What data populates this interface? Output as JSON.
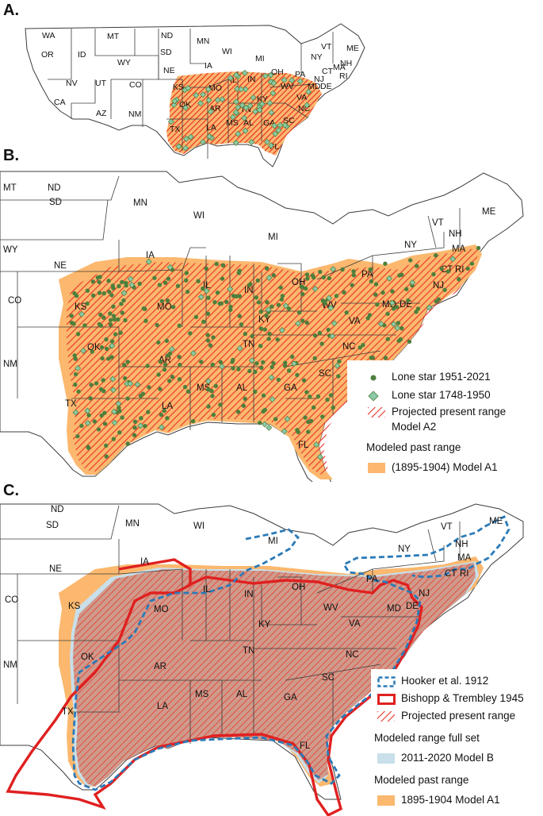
{
  "panels": {
    "a": {
      "label": "A."
    },
    "b": {
      "label": "B."
    },
    "c": {
      "label": "C."
    }
  },
  "states": {
    "a": [
      "WA",
      "MT",
      "ND",
      "MN",
      "OR",
      "ID",
      "SD",
      "WI",
      "MI",
      "VT",
      "ME",
      "NY",
      "NH",
      "WY",
      "NE",
      "IA",
      "PA",
      "RI",
      "CT",
      "MA",
      "NJ",
      "DE",
      "MD",
      "NV",
      "UT",
      "CO",
      "KS",
      "MO",
      "IL",
      "IN",
      "OH",
      "WV",
      "VA",
      "KY",
      "CA",
      "AZ",
      "NM",
      "OK",
      "AR",
      "TN",
      "NC",
      "SC",
      "TX",
      "LA",
      "MS",
      "AL",
      "GA",
      "FL"
    ],
    "b": [
      "MT",
      "ND",
      "MN",
      "WI",
      "MI",
      "VT",
      "ME",
      "NH",
      "NY",
      "MA",
      "SD",
      "WY",
      "NE",
      "IA",
      "PA",
      "CT",
      "RI",
      "NJ",
      "CO",
      "KS",
      "MO",
      "IL",
      "IN",
      "OH",
      "WV",
      "MD",
      "DE",
      "VA",
      "KY",
      "OK",
      "AR",
      "TN",
      "NC",
      "SC",
      "NM",
      "MS",
      "AL",
      "GA",
      "TX",
      "LA",
      "FL"
    ],
    "c": [
      "ND",
      "SD",
      "MN",
      "WI",
      "MI",
      "VT",
      "ME",
      "NH",
      "NY",
      "MA",
      "NE",
      "IA",
      "PA",
      "CT",
      "RI",
      "NJ",
      "CO",
      "KS",
      "MO",
      "IL",
      "IN",
      "OH",
      "WV",
      "MD",
      "DE",
      "VA",
      "KY",
      "OK",
      "AR",
      "TN",
      "NC",
      "NM",
      "SC",
      "TX",
      "LA",
      "MS",
      "AL",
      "GA",
      "FL"
    ]
  },
  "legend_b": {
    "lone_star_recent": "Lone star 1951-2021",
    "lone_star_historic": "Lone star 1748-1950",
    "projected_line1": "Projected present range",
    "projected_line2": "Model A2",
    "past_header": "Modeled past range",
    "past_label": "(1895-1904) Model A1"
  },
  "legend_c": {
    "hooker": "Hooker et al. 1912",
    "bishopp": "Bishopp & Trembley 1945",
    "projected": "Projected present range",
    "full_header": "Modeled range full set",
    "full_label": "2011-2020 Model B",
    "past_header": "Modeled past range",
    "past_label": "1895-1904 Model A1"
  },
  "colors": {
    "past_range": "#fbb86e",
    "projected_hatch": "#e8332a",
    "recent_points": "#4e7f3c",
    "historic_points": "#8cc9a6",
    "model_b": "#c9dfea",
    "hooker_line": "#2a7ab8",
    "bishopp_line": "#e02020",
    "state_borders": "#3c3c3c"
  }
}
